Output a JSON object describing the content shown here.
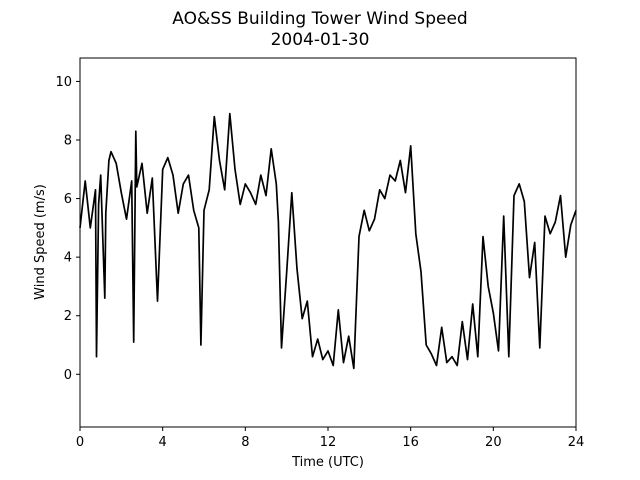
{
  "chart_data": {
    "type": "line",
    "title": "AO&SS Building Tower Wind Speed",
    "subtitle": "2004-01-30",
    "xlabel": "Time (UTC)",
    "ylabel": "Wind Speed (m/s)",
    "xlim": [
      0,
      24
    ],
    "ylim": [
      -1.8,
      10.8
    ],
    "xticks": [
      0,
      4,
      8,
      12,
      16,
      20,
      24
    ],
    "yticks": [
      0,
      2,
      4,
      6,
      8,
      10
    ],
    "grid": false,
    "line_color": "#000000",
    "series": [
      {
        "x": [
          0,
          0.25,
          0.5,
          0.75,
          0.8,
          0.9,
          1.0,
          1.2,
          1.25,
          1.4,
          1.5,
          1.75,
          2.0,
          2.25,
          2.5,
          2.6,
          2.7,
          2.75,
          3.0,
          3.25,
          3.5,
          3.75,
          4.0,
          4.25,
          4.5,
          4.75,
          5.0,
          5.25,
          5.5,
          5.75,
          5.85,
          6.0,
          6.25,
          6.5,
          6.75,
          7.0,
          7.25,
          7.5,
          7.75,
          8.0,
          8.25,
          8.5,
          8.75,
          9.0,
          9.25,
          9.5,
          9.6,
          9.75,
          10.0,
          10.25,
          10.5,
          10.75,
          11.0,
          11.25,
          11.5,
          11.75,
          12.0,
          12.25,
          12.5,
          12.75,
          13.0,
          13.25,
          13.5,
          13.75,
          14.0,
          14.25,
          14.5,
          14.75,
          15.0,
          15.25,
          15.5,
          15.75,
          16.0,
          16.25,
          16.5,
          16.75,
          17.0,
          17.25,
          17.5,
          17.75,
          18.0,
          18.25,
          18.5,
          18.75,
          19.0,
          19.25,
          19.5,
          19.75,
          20.0,
          20.25,
          20.5,
          20.75,
          21.0,
          21.25,
          21.5,
          21.75,
          22.0,
          22.25,
          22.5,
          22.75,
          23.0,
          23.25,
          23.5,
          23.75,
          24.0
        ],
        "y": [
          5.0,
          6.6,
          5.0,
          6.3,
          0.6,
          5.8,
          6.8,
          2.6,
          5.5,
          7.3,
          7.6,
          7.2,
          6.2,
          5.3,
          6.6,
          1.1,
          8.3,
          6.4,
          7.2,
          5.5,
          6.7,
          2.5,
          7.0,
          7.4,
          6.8,
          5.5,
          6.5,
          6.8,
          5.6,
          5.0,
          1.0,
          5.6,
          6.3,
          8.8,
          7.3,
          6.3,
          8.9,
          7.0,
          5.8,
          6.5,
          6.2,
          5.8,
          6.8,
          6.1,
          7.7,
          6.5,
          5.2,
          0.9,
          3.5,
          6.2,
          3.6,
          1.9,
          2.5,
          0.6,
          1.2,
          0.5,
          0.8,
          0.3,
          2.2,
          0.4,
          1.3,
          0.2,
          4.7,
          5.6,
          4.9,
          5.3,
          6.3,
          6.0,
          6.8,
          6.6,
          7.3,
          6.2,
          7.8,
          4.8,
          3.5,
          1.0,
          0.7,
          0.3,
          1.6,
          0.4,
          0.6,
          0.3,
          1.8,
          0.5,
          2.4,
          0.6,
          4.7,
          3.0,
          2.1,
          0.8,
          5.4,
          0.6,
          6.1,
          6.5,
          5.9,
          3.3,
          4.5,
          0.9,
          5.4,
          4.8,
          5.2,
          6.1,
          4.0,
          5.1,
          5.6
        ]
      }
    ]
  }
}
